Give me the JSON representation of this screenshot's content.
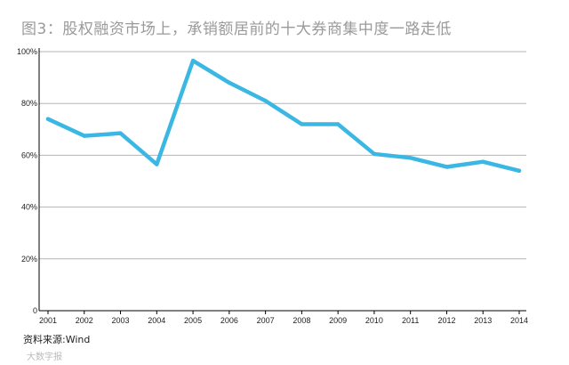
{
  "header": {
    "title": "图3：股权融资市场上，承销额居前的十大券商集中度一路走低"
  },
  "footer": {
    "source": "资料来源:Wind",
    "watermark": "大数字报"
  },
  "style": {
    "line_color": "#3bb7e3",
    "grid_color": "#b5b5b5",
    "title_color": "#9a9a9a"
  },
  "chart_data": {
    "type": "line",
    "categories": [
      "2001",
      "2002",
      "2003",
      "2004",
      "2005",
      "2006",
      "2007",
      "2008",
      "2009",
      "2010",
      "2011",
      "2012",
      "2013",
      "2014"
    ],
    "series": [
      {
        "values": [
          74,
          67.5,
          68.5,
          56.5,
          96.5,
          88,
          81,
          72,
          72,
          60.5,
          59,
          55.5,
          57.5,
          54
        ]
      }
    ],
    "y_ticks": [
      0,
      20,
      40,
      60,
      80,
      100
    ],
    "y_tick_labels": [
      "0",
      "20%",
      "40%",
      "60%",
      "80%",
      "100%"
    ],
    "ylim": [
      0,
      100
    ],
    "grid": true,
    "legend": "none"
  }
}
